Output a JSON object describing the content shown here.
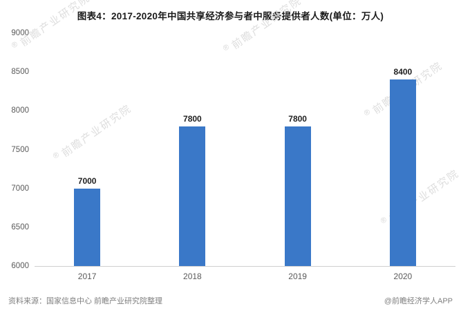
{
  "title": "图表4：2017-2020年中国共享经济参与者中服务提供者人数(单位：万人)",
  "chart_data": {
    "type": "bar",
    "categories": [
      "2017",
      "2018",
      "2019",
      "2020"
    ],
    "values": [
      7000,
      7800,
      7800,
      8400
    ],
    "title": "图表4：2017-2020年中国共享经济参与者中服务提供者人数(单位：万人)",
    "xlabel": "",
    "ylabel": "",
    "ylim": [
      6000,
      9000
    ],
    "yticks": [
      6000,
      6500,
      7000,
      7500,
      8000,
      8500,
      9000
    ],
    "bar_color": "#3a78c8",
    "grid": false,
    "legend": "none",
    "data_labels": true
  },
  "footer": {
    "source": "资料来源：国家信息中心 前瞻产业研究院整理",
    "credit": "@前瞻经济学人APP"
  },
  "watermark": {
    "text": "前瞻产业研究院",
    "reg_mark": "®"
  }
}
